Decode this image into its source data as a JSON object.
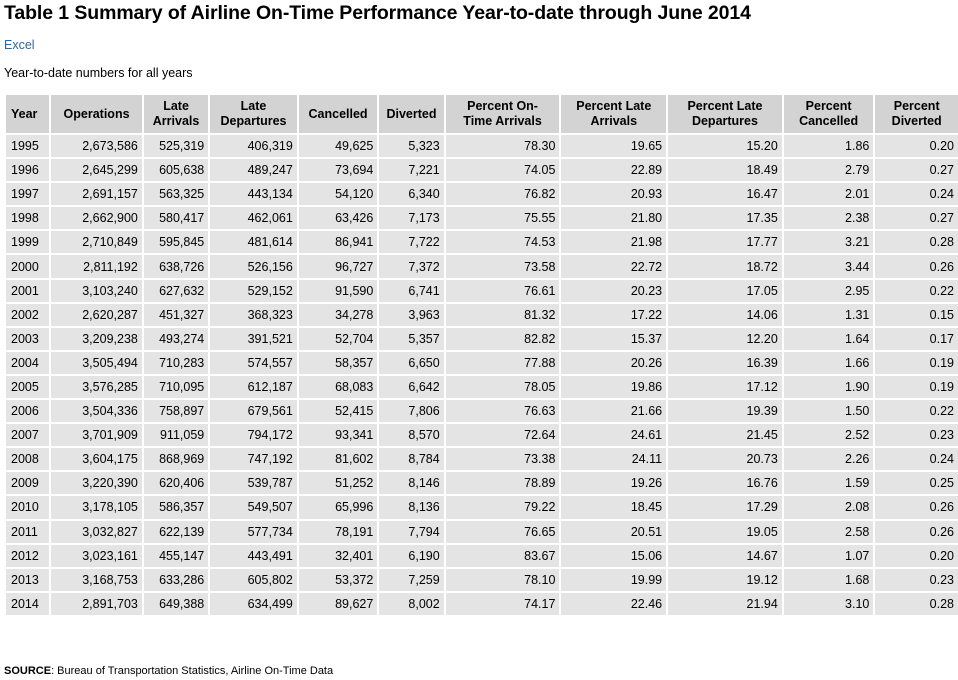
{
  "title": "Table 1 Summary of Airline On-Time Performance Year-to-date through June 2014",
  "excel_link": "Excel",
  "subtitle": "Year-to-date numbers for all years",
  "table": {
    "headers": [
      [
        "Year"
      ],
      [
        "Operations"
      ],
      [
        "Late",
        "Arrivals"
      ],
      [
        "Late",
        "Departures"
      ],
      [
        "Cancelled"
      ],
      [
        "Diverted"
      ],
      [
        "Percent On-",
        "Time Arrivals"
      ],
      [
        "Percent Late",
        "Arrivals"
      ],
      [
        "Percent Late",
        "Departures"
      ],
      [
        "Percent",
        "Cancelled"
      ],
      [
        "Percent",
        "Diverted"
      ]
    ],
    "rows": [
      [
        "1995",
        "2,673,586",
        "525,319",
        "406,319",
        "49,625",
        "5,323",
        "78.30",
        "19.65",
        "15.20",
        "1.86",
        "0.20"
      ],
      [
        "1996",
        "2,645,299",
        "605,638",
        "489,247",
        "73,694",
        "7,221",
        "74.05",
        "22.89",
        "18.49",
        "2.79",
        "0.27"
      ],
      [
        "1997",
        "2,691,157",
        "563,325",
        "443,134",
        "54,120",
        "6,340",
        "76.82",
        "20.93",
        "16.47",
        "2.01",
        "0.24"
      ],
      [
        "1998",
        "2,662,900",
        "580,417",
        "462,061",
        "63,426",
        "7,173",
        "75.55",
        "21.80",
        "17.35",
        "2.38",
        "0.27"
      ],
      [
        "1999",
        "2,710,849",
        "595,845",
        "481,614",
        "86,941",
        "7,722",
        "74.53",
        "21.98",
        "17.77",
        "3.21",
        "0.28"
      ],
      [
        "2000",
        "2,811,192",
        "638,726",
        "526,156",
        "96,727",
        "7,372",
        "73.58",
        "22.72",
        "18.72",
        "3.44",
        "0.26"
      ],
      [
        "2001",
        "3,103,240",
        "627,632",
        "529,152",
        "91,590",
        "6,741",
        "76.61",
        "20.23",
        "17.05",
        "2.95",
        "0.22"
      ],
      [
        "2002",
        "2,620,287",
        "451,327",
        "368,323",
        "34,278",
        "3,963",
        "81.32",
        "17.22",
        "14.06",
        "1.31",
        "0.15"
      ],
      [
        "2003",
        "3,209,238",
        "493,274",
        "391,521",
        "52,704",
        "5,357",
        "82.82",
        "15.37",
        "12.20",
        "1.64",
        "0.17"
      ],
      [
        "2004",
        "3,505,494",
        "710,283",
        "574,557",
        "58,357",
        "6,650",
        "77.88",
        "20.26",
        "16.39",
        "1.66",
        "0.19"
      ],
      [
        "2005",
        "3,576,285",
        "710,095",
        "612,187",
        "68,083",
        "6,642",
        "78.05",
        "19.86",
        "17.12",
        "1.90",
        "0.19"
      ],
      [
        "2006",
        "3,504,336",
        "758,897",
        "679,561",
        "52,415",
        "7,806",
        "76.63",
        "21.66",
        "19.39",
        "1.50",
        "0.22"
      ],
      [
        "2007",
        "3,701,909",
        "911,059",
        "794,172",
        "93,341",
        "8,570",
        "72.64",
        "24.61",
        "21.45",
        "2.52",
        "0.23"
      ],
      [
        "2008",
        "3,604,175",
        "868,969",
        "747,192",
        "81,602",
        "8,784",
        "73.38",
        "24.11",
        "20.73",
        "2.26",
        "0.24"
      ],
      [
        "2009",
        "3,220,390",
        "620,406",
        "539,787",
        "51,252",
        "8,146",
        "78.89",
        "19.26",
        "16.76",
        "1.59",
        "0.25"
      ],
      [
        "2010",
        "3,178,105",
        "586,357",
        "549,507",
        "65,996",
        "8,136",
        "79.22",
        "18.45",
        "17.29",
        "2.08",
        "0.26"
      ],
      [
        "2011",
        "3,032,827",
        "622,139",
        "577,734",
        "78,191",
        "7,794",
        "76.65",
        "20.51",
        "19.05",
        "2.58",
        "0.26"
      ],
      [
        "2012",
        "3,023,161",
        "455,147",
        "443,491",
        "32,401",
        "6,190",
        "83.67",
        "15.06",
        "14.67",
        "1.07",
        "0.20"
      ],
      [
        "2013",
        "3,168,753",
        "633,286",
        "605,802",
        "53,372",
        "7,259",
        "78.10",
        "19.99",
        "19.12",
        "1.68",
        "0.23"
      ],
      [
        "2014",
        "2,891,703",
        "649,388",
        "634,499",
        "89,627",
        "8,002",
        "74.17",
        "22.46",
        "21.94",
        "3.10",
        "0.28"
      ]
    ]
  },
  "source_label": "SOURCE",
  "source_text": ": Bureau of Transportation Statistics, Airline On-Time Data"
}
